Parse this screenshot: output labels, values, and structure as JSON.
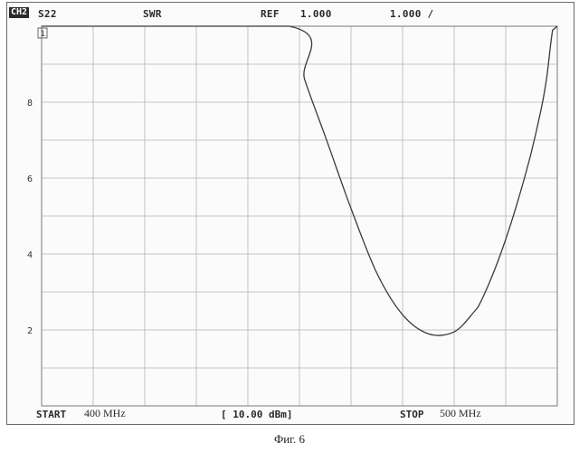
{
  "header": {
    "channel": "CH2",
    "parameter": "S22",
    "format": "SWR",
    "ref_label": "REF",
    "ref_value": "1.000",
    "scale": "1.000 /"
  },
  "marker": {
    "label": "1"
  },
  "footer": {
    "start_label": "START",
    "start_value": "400 MHz",
    "power": "[ 10.00 dBm]",
    "stop_label": "STOP",
    "stop_value": "500 MHz"
  },
  "caption": "Фиг. 6",
  "chart_data": {
    "type": "line",
    "title": "",
    "xlabel": "",
    "ylabel": "",
    "xlim": [
      400,
      500
    ],
    "ylim": [
      0,
      10
    ],
    "x_divisions": 10,
    "y_divisions": 10,
    "grid": true,
    "y_ticks": [
      {
        "value": 2,
        "label": "2"
      },
      {
        "value": 4,
        "label": "4"
      },
      {
        "value": 6,
        "label": "6"
      },
      {
        "value": 8,
        "label": "8"
      }
    ],
    "series": [
      {
        "x": [
          400,
          448,
          451,
          455,
          460,
          465,
          470,
          475,
          480,
          484,
          485,
          487,
          489,
          491,
          493,
          495,
          497,
          498,
          499.1,
          500
        ],
        "y": [
          10,
          10,
          8.6,
          7.1,
          5.2,
          3.5,
          2.4,
          1.9,
          1.95,
          2.5,
          2.7,
          3.3,
          4.0,
          4.8,
          5.7,
          6.7,
          7.9,
          8.7,
          9.9,
          10
        ]
      }
    ],
    "line_color": "#3a3a3a"
  }
}
